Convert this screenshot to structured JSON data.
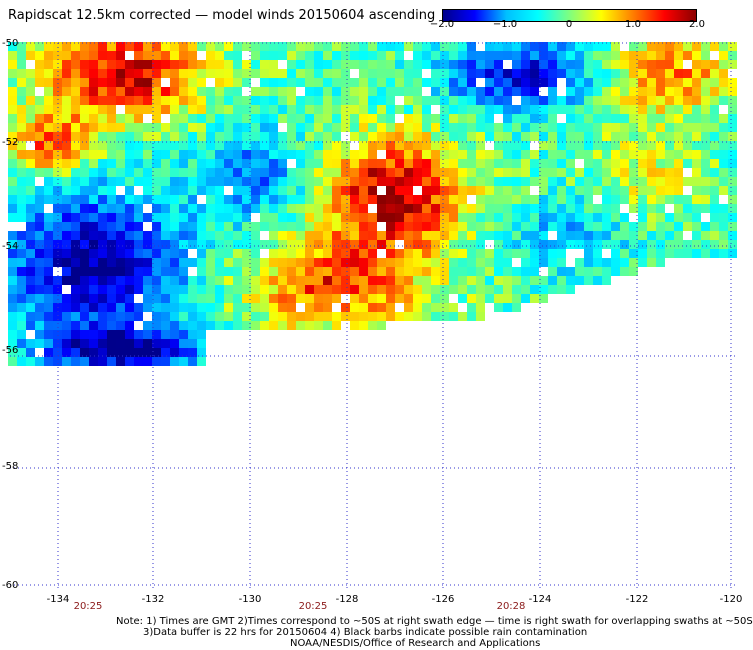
{
  "title": "Rapidscat 12.5km corrected — model winds 20150604 ascending",
  "colorbar": {
    "labels": [
      "−2.0",
      "−1.0",
      "0",
      "1.0",
      "2.0"
    ],
    "stops": [
      "#00008b",
      "#0000ff",
      "#00bfff",
      "#00ffff",
      "#7fff7f",
      "#ffff00",
      "#ff7f00",
      "#ff0000",
      "#8b0000"
    ]
  },
  "lat_ticks": [
    "-50",
    "-52",
    "-54",
    "-56",
    "-58",
    "-60"
  ],
  "lon_ticks": [
    "-134",
    "-132",
    "-130",
    "-128",
    "-126",
    "-124",
    "-122",
    "-120"
  ],
  "time_labels": [
    "20:25",
    "20:25",
    "20:28"
  ],
  "notes": [
    "Note: 1) Times are GMT 2)Times correspond to ~50S at right swath edge — time is right swath for overlapping swaths at ~50S",
    "3)Data buffer is 22 hrs for 20150604 4) Black barbs indicate possible rain contamination",
    "NOAA/NESDIS/Office of Research and Applications"
  ]
}
